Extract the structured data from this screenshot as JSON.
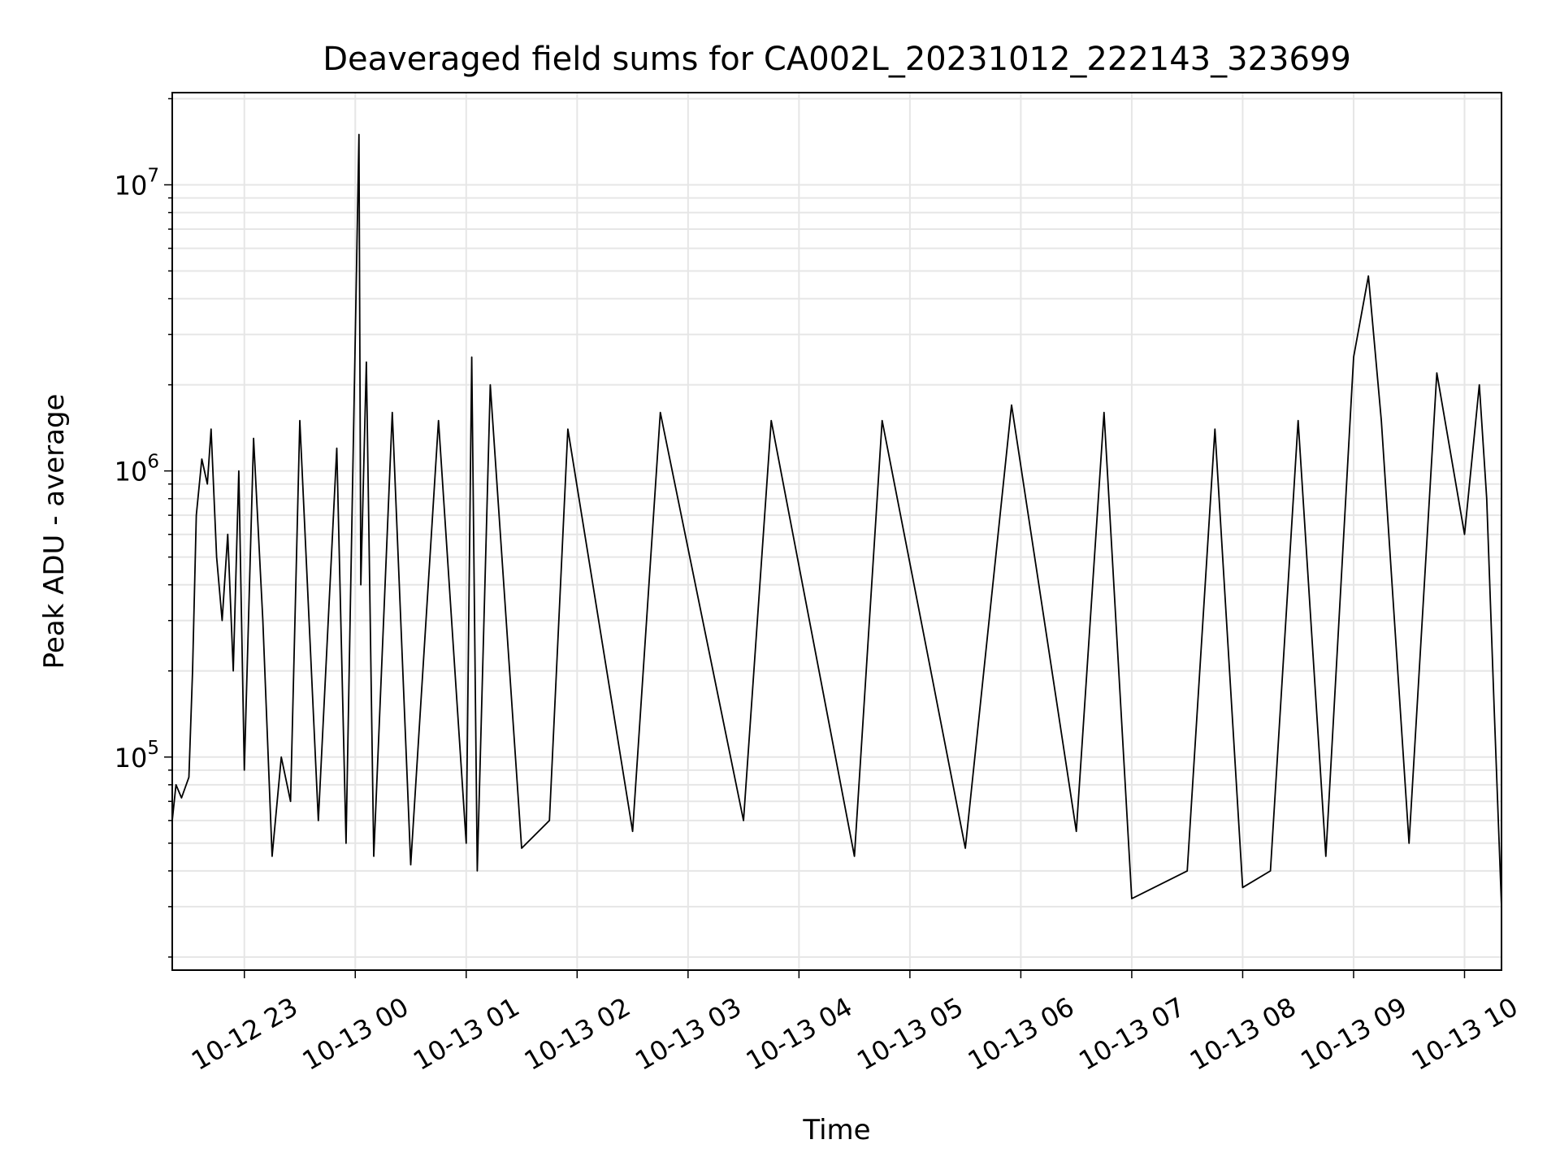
{
  "chart_data": {
    "type": "line",
    "title": "Deaveraged field sums for CA002L_20231012_222143_323699",
    "xlabel": "Time",
    "ylabel": "Peak ADU - average",
    "yscale": "log",
    "ylim": [
      18000,
      21000000
    ],
    "xlim": [
      "2023-10-12 22:21",
      "2023-10-13 10:20"
    ],
    "grid": true,
    "line_color": "#000000",
    "x_ticks": [
      "10-12 23",
      "10-13 00",
      "10-13 01",
      "10-13 02",
      "10-13 03",
      "10-13 04",
      "10-13 05",
      "10-13 06",
      "10-13 07",
      "10-13 08",
      "10-13 09",
      "10-13 10"
    ],
    "y_ticks": [
      {
        "value": 100000,
        "base": "10",
        "exp": "5"
      },
      {
        "value": 1000000,
        "base": "10",
        "exp": "6"
      },
      {
        "value": 10000000,
        "base": "10",
        "exp": "7"
      }
    ],
    "series": [
      {
        "values_note_units": "x in 'YYYY-MM-DD HH:MM', y in ADU",
        "points": [
          [
            "2023-10-12 22:21",
            60000
          ],
          [
            "2023-10-12 22:23",
            80000
          ],
          [
            "2023-10-12 22:26",
            72000
          ],
          [
            "2023-10-12 22:30",
            85000
          ],
          [
            "2023-10-12 22:32",
            200000
          ],
          [
            "2023-10-12 22:34",
            700000
          ],
          [
            "2023-10-12 22:37",
            1100000
          ],
          [
            "2023-10-12 22:40",
            900000
          ],
          [
            "2023-10-12 22:42",
            1400000
          ],
          [
            "2023-10-12 22:45",
            500000
          ],
          [
            "2023-10-12 22:48",
            300000
          ],
          [
            "2023-10-12 22:51",
            600000
          ],
          [
            "2023-10-12 22:54",
            200000
          ],
          [
            "2023-10-12 22:57",
            1000000
          ],
          [
            "2023-10-12 23:00",
            90000
          ],
          [
            "2023-10-12 23:05",
            1300000
          ],
          [
            "2023-10-12 23:10",
            300000
          ],
          [
            "2023-10-12 23:15",
            45000
          ],
          [
            "2023-10-12 23:20",
            100000
          ],
          [
            "2023-10-12 23:25",
            70000
          ],
          [
            "2023-10-12 23:30",
            1500000
          ],
          [
            "2023-10-12 23:40",
            60000
          ],
          [
            "2023-10-12 23:50",
            1200000
          ],
          [
            "2023-10-12 23:55",
            50000
          ],
          [
            "2023-10-13 00:02",
            15000000
          ],
          [
            "2023-10-13 00:03",
            400000
          ],
          [
            "2023-10-13 00:06",
            2400000
          ],
          [
            "2023-10-13 00:10",
            45000
          ],
          [
            "2023-10-13 00:20",
            1600000
          ],
          [
            "2023-10-13 00:30",
            42000
          ],
          [
            "2023-10-13 00:45",
            1500000
          ],
          [
            "2023-10-13 01:00",
            50000
          ],
          [
            "2023-10-13 01:03",
            2500000
          ],
          [
            "2023-10-13 01:06",
            40000
          ],
          [
            "2023-10-13 01:13",
            2000000
          ],
          [
            "2023-10-13 01:30",
            48000
          ],
          [
            "2023-10-13 01:45",
            60000
          ],
          [
            "2023-10-13 01:55",
            1400000
          ],
          [
            "2023-10-13 02:30",
            55000
          ],
          [
            "2023-10-13 02:45",
            1600000
          ],
          [
            "2023-10-13 03:30",
            60000
          ],
          [
            "2023-10-13 03:45",
            1500000
          ],
          [
            "2023-10-13 04:30",
            45000
          ],
          [
            "2023-10-13 04:45",
            1500000
          ],
          [
            "2023-10-13 05:30",
            48000
          ],
          [
            "2023-10-13 05:55",
            1700000
          ],
          [
            "2023-10-13 06:30",
            55000
          ],
          [
            "2023-10-13 06:45",
            1600000
          ],
          [
            "2023-10-13 07:00",
            32000
          ],
          [
            "2023-10-13 07:30",
            40000
          ],
          [
            "2023-10-13 07:45",
            1400000
          ],
          [
            "2023-10-13 08:00",
            35000
          ],
          [
            "2023-10-13 08:15",
            40000
          ],
          [
            "2023-10-13 08:30",
            1500000
          ],
          [
            "2023-10-13 08:45",
            45000
          ],
          [
            "2023-10-13 09:00",
            2500000
          ],
          [
            "2023-10-13 09:08",
            4800000
          ],
          [
            "2023-10-13 09:15",
            1500000
          ],
          [
            "2023-10-13 09:30",
            50000
          ],
          [
            "2023-10-13 09:45",
            2200000
          ],
          [
            "2023-10-13 10:00",
            600000
          ],
          [
            "2023-10-13 10:08",
            2000000
          ],
          [
            "2023-10-13 10:12",
            800000
          ],
          [
            "2023-10-13 10:16",
            150000
          ],
          [
            "2023-10-13 10:20",
            30000
          ]
        ]
      }
    ]
  }
}
